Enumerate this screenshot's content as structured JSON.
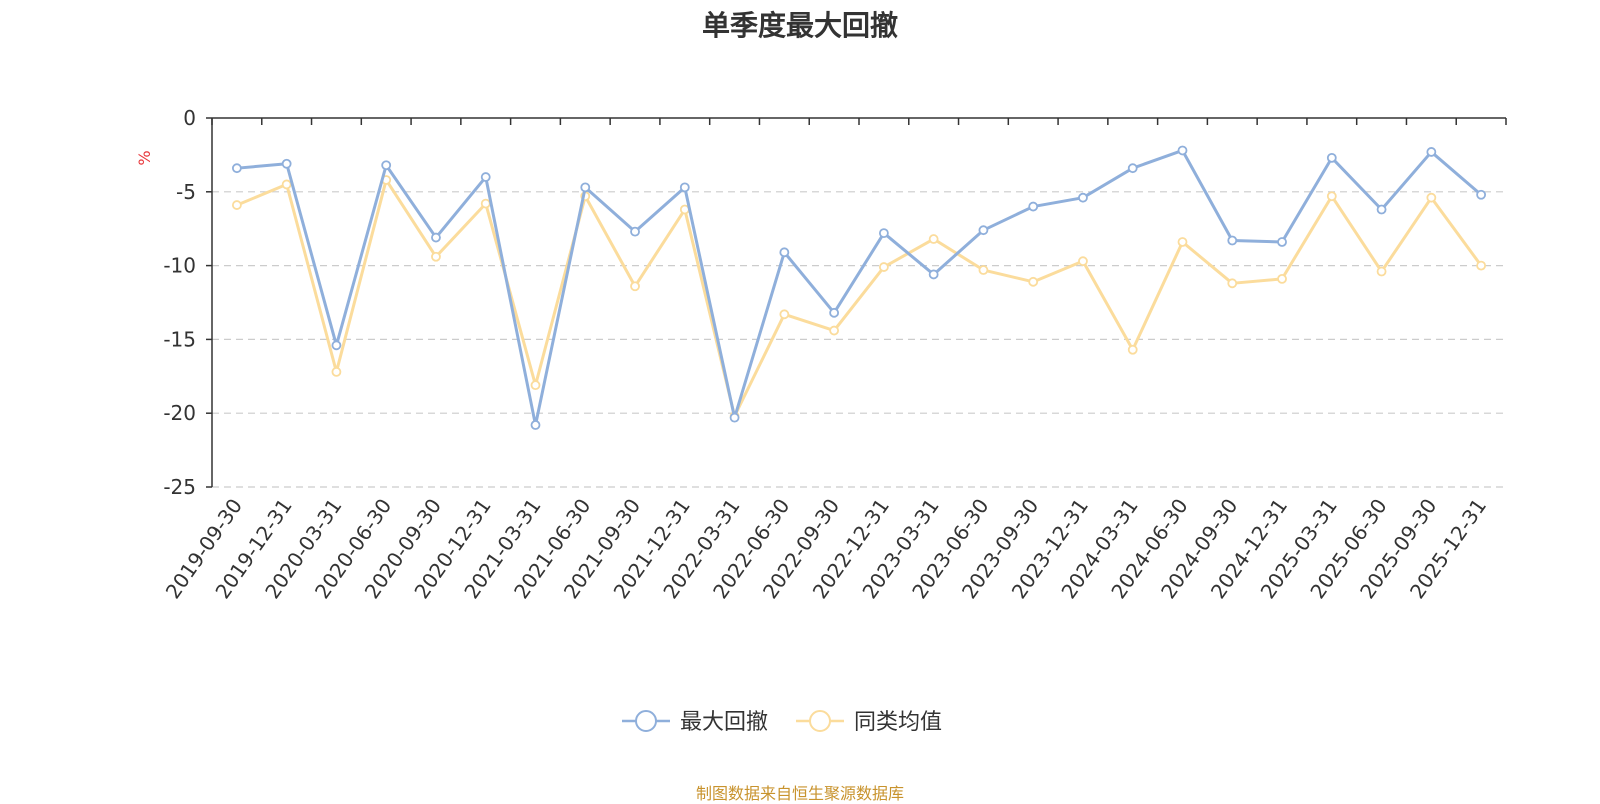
{
  "chart_data": {
    "type": "line",
    "title": "单季度最大回撤",
    "ylabel": "%",
    "ylim": [
      -25,
      0
    ],
    "yticks": [
      0,
      -5,
      -10,
      -15,
      -20,
      -25
    ],
    "grid": true,
    "legend_position": "bottom-center",
    "categories": [
      "2019-09-30",
      "2019-12-31",
      "2020-03-31",
      "2020-06-30",
      "2020-09-30",
      "2020-12-31",
      "2021-03-31",
      "2021-06-30",
      "2021-09-30",
      "2021-12-31",
      "2022-03-31",
      "2022-06-30",
      "2022-09-30",
      "2022-12-31",
      "2023-03-31",
      "2023-06-30",
      "2023-09-30",
      "2023-12-31",
      "2024-03-31",
      "2024-06-30",
      "2024-09-30",
      "2024-12-31",
      "2025-03-31",
      "2025-06-30",
      "2025-09-30",
      "2025-12-31"
    ],
    "series": [
      {
        "name": "最大回撤",
        "color": "#8fafdb",
        "values": [
          -3.4,
          -3.1,
          -15.4,
          -3.2,
          -8.1,
          -4.0,
          -20.8,
          -4.7,
          -7.7,
          -4.7,
          -20.3,
          -9.1,
          -13.2,
          -7.8,
          -10.6,
          -7.6,
          -6.0,
          -5.4,
          -3.4,
          -2.2,
          -8.3,
          -8.4,
          -2.7,
          -6.2,
          -2.3,
          -5.2
        ]
      },
      {
        "name": "同类均值",
        "color": "#fbdc9c",
        "values": [
          -5.9,
          -4.5,
          -17.2,
          -4.2,
          -9.4,
          -5.8,
          -18.1,
          -5.3,
          -11.4,
          -6.2,
          -20.2,
          -13.3,
          -14.4,
          -10.1,
          -8.2,
          -10.3,
          -11.1,
          -9.7,
          -15.7,
          -8.4,
          -11.2,
          -10.9,
          -5.3,
          -10.4,
          -5.4,
          -10.0
        ]
      }
    ]
  },
  "source_note": "制图数据来自恒生聚源数据库",
  "colors": {
    "title": "#333333",
    "axis": "#333333",
    "grid": "#cccccc",
    "unit": "#e8363a",
    "source": "#c8932d"
  }
}
